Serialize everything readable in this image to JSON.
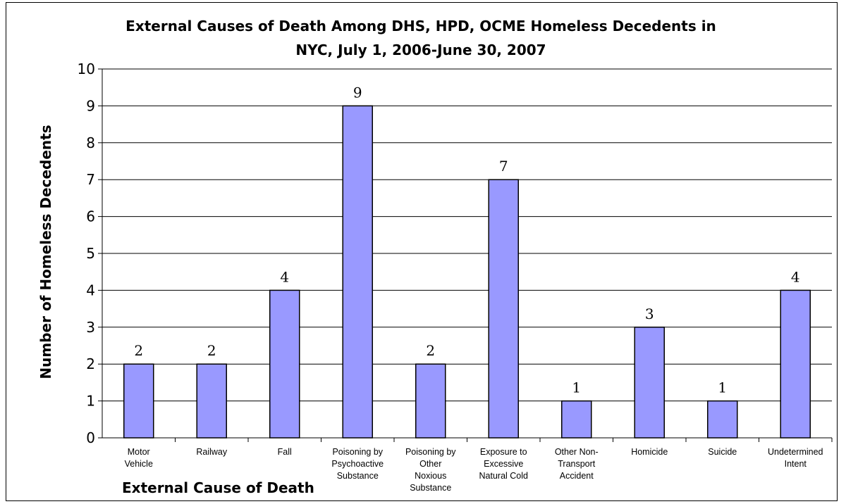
{
  "chart_data": {
    "type": "bar",
    "title_lines": [
      "External Causes of Death Among DHS, HPD, OCME Homeless Decedents in",
      "NYC, July 1, 2006-June 30, 2007"
    ],
    "ylabel": "Number of Homeless Decedents",
    "xlabel": "External Cause of Death",
    "ylim": [
      0,
      10
    ],
    "yticks": [
      "0",
      "1",
      "2",
      "3",
      "4",
      "5",
      "6",
      "7",
      "8",
      "9",
      "10"
    ],
    "grid": "horizontal",
    "categories": [
      [
        "Motor",
        "Vehicle"
      ],
      [
        "Railway"
      ],
      [
        "Fall"
      ],
      [
        "Poisoning by",
        "Psychoactive",
        "Substance"
      ],
      [
        "Poisoning by",
        "Other",
        "Noxious",
        "Substance"
      ],
      [
        "Exposure to",
        "Excessive",
        "Natural Cold"
      ],
      [
        "Other Non-",
        "Transport",
        "Accident"
      ],
      [
        "Homicide"
      ],
      [
        "Suicide"
      ],
      [
        "Undetermined",
        "Intent"
      ]
    ],
    "values": [
      2,
      2,
      4,
      9,
      2,
      7,
      1,
      3,
      1,
      4
    ],
    "data_labels": [
      "2",
      "2",
      "4",
      "9",
      "2",
      "7",
      "1",
      "3",
      "1",
      "4"
    ],
    "bar_color": "#9999ff",
    "bar_edge_color": "#000000"
  }
}
